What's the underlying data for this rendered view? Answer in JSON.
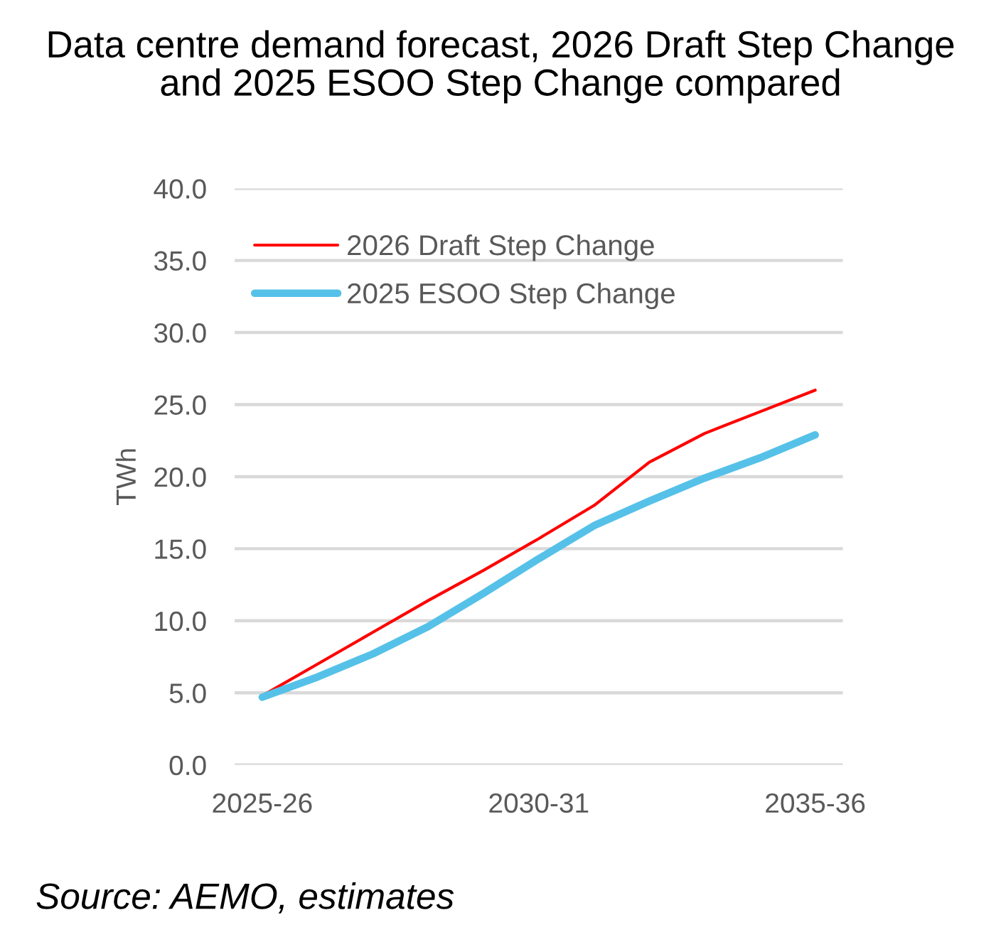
{
  "chart_data": {
    "type": "line",
    "title": "Data centre demand forecast, 2026 Draft Step Change\nand 2025 ESOO Step Change compared",
    "ylabel": "TWh",
    "categories": [
      "2025-26",
      null,
      null,
      null,
      null,
      "2030-31",
      null,
      null,
      null,
      null,
      "2035-36"
    ],
    "series": [
      {
        "name": "2026 Draft Step Change",
        "color": "#ff0000",
        "values": [
          4.8,
          7.0,
          9.2,
          11.4,
          13.5,
          15.7,
          18.0,
          21.0,
          23.0,
          24.5,
          26.0
        ]
      },
      {
        "name": "2025 ESOO Step Change",
        "color": "#56c1e8",
        "values": [
          4.7,
          6.1,
          7.7,
          9.6,
          11.9,
          14.3,
          16.6,
          18.3,
          19.9,
          21.3,
          22.9
        ]
      }
    ],
    "ylim": [
      0,
      40
    ],
    "yticks": [
      {
        "value": 0,
        "label": "0.0"
      },
      {
        "value": 5,
        "label": "5.0"
      },
      {
        "value": 10,
        "label": "10.0"
      },
      {
        "value": 15,
        "label": "15.0"
      },
      {
        "value": 20,
        "label": "20.0"
      },
      {
        "value": 25,
        "label": "25.0"
      },
      {
        "value": 30,
        "label": "30.0"
      },
      {
        "value": 35,
        "label": "35.0"
      },
      {
        "value": 40,
        "label": "40.0"
      }
    ],
    "grid": "y",
    "legend": "top left",
    "marker": "none",
    "line_style": "solid",
    "annotations": [
      "Source: AEMO, estimates"
    ]
  }
}
